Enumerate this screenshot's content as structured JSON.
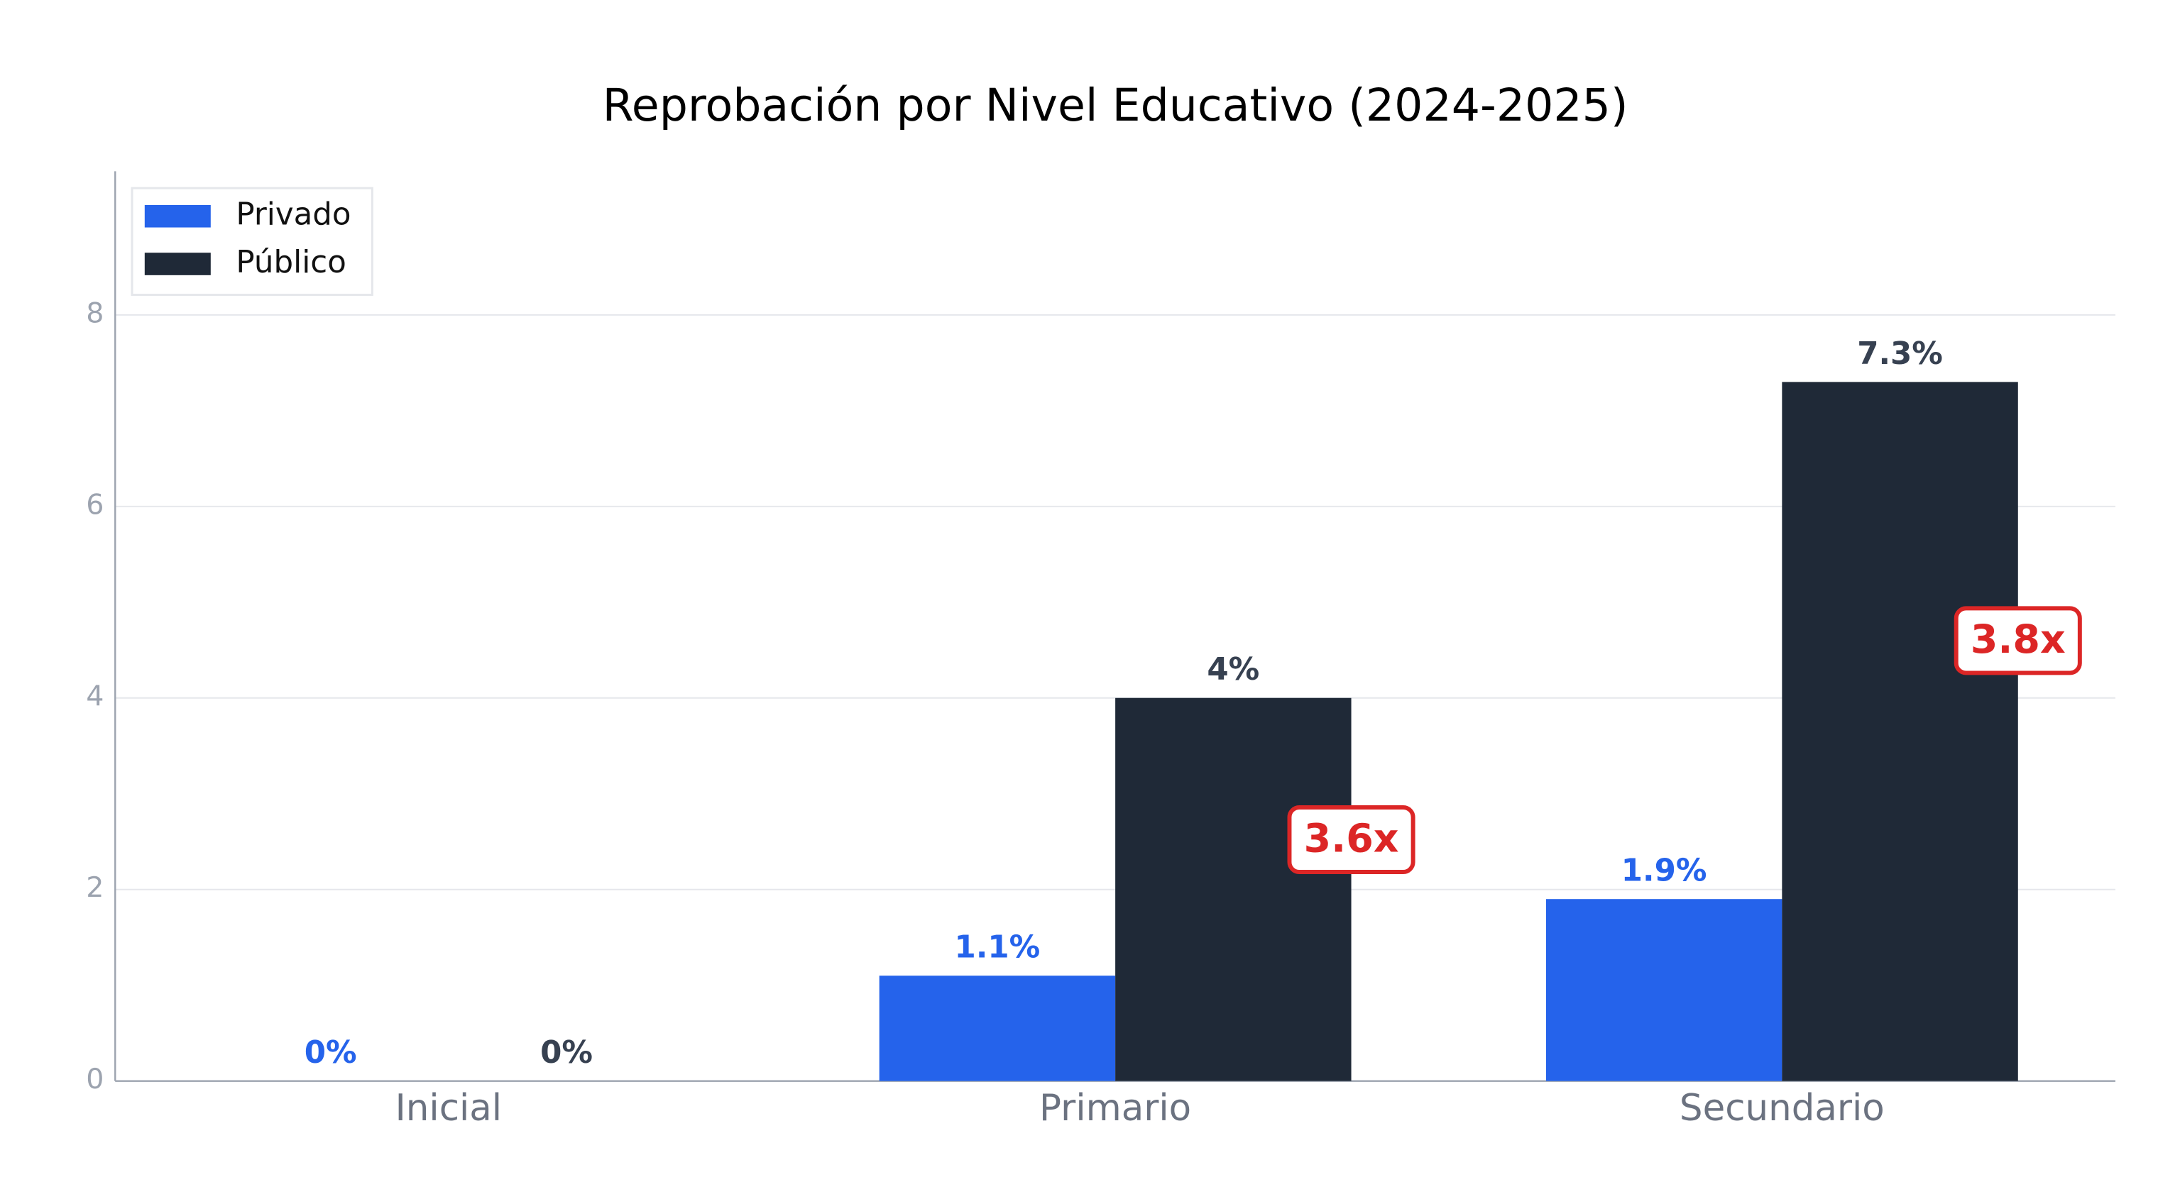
{
  "chart_data": {
    "type": "bar",
    "title": "Reprobación por Nivel Educativo (2024-2025)",
    "categories": [
      "Inicial",
      "Primario",
      "Secundario"
    ],
    "series": [
      {
        "name": "Privado",
        "color": "#2563eb",
        "values": [
          0,
          1.1,
          1.9
        ],
        "value_labels": [
          "0%",
          "1.1%",
          "1.9%"
        ]
      },
      {
        "name": "Público",
        "color": "#1f2937",
        "values": [
          0,
          4,
          7.3
        ],
        "value_labels": [
          "0%",
          "4%",
          "7.3%"
        ]
      }
    ],
    "ratio_labels": [
      null,
      "3.6x",
      "3.8x"
    ],
    "ratio_color": "#dc2626",
    "ylim": [
      0,
      9.5
    ],
    "yticks": [
      0,
      2,
      4,
      6,
      8
    ],
    "grid": true,
    "legend": "upper left"
  }
}
